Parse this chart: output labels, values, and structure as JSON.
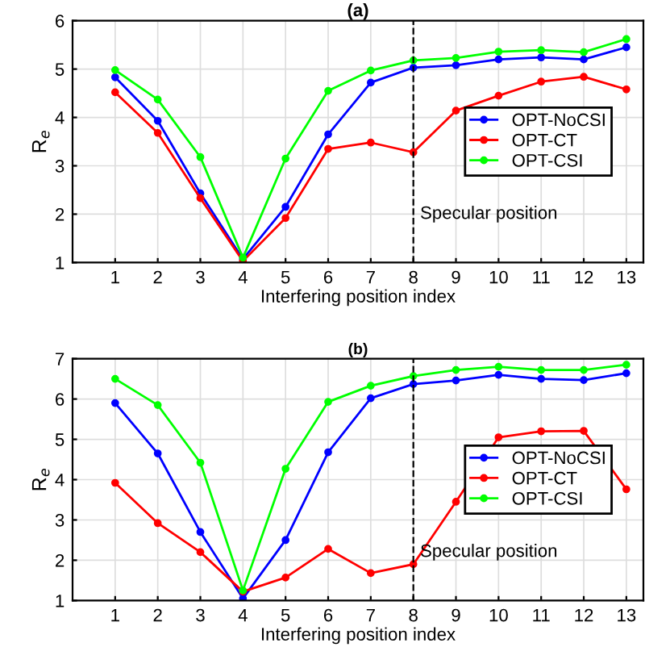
{
  "chart_data": [
    {
      "type": "line",
      "title": "(a)",
      "xlabel": "Interfering position index",
      "ylabel": "R$_{e}$",
      "x": [
        1,
        2,
        3,
        4,
        5,
        6,
        7,
        8,
        9,
        10,
        11,
        12,
        13
      ],
      "series": [
        {
          "name": "OPT-NoCSI",
          "color": "#0000ff",
          "values": [
            4.83,
            3.93,
            2.43,
            1.07,
            2.15,
            3.65,
            4.72,
            5.03,
            5.08,
            5.2,
            5.24,
            5.2,
            5.45
          ]
        },
        {
          "name": "OPT-CT",
          "color": "#ff0000",
          "values": [
            4.52,
            3.68,
            2.33,
            1.03,
            1.92,
            3.35,
            3.48,
            3.28,
            4.14,
            4.45,
            4.74,
            4.84,
            4.58
          ]
        },
        {
          "name": "OPT-CSI",
          "color": "#00ff00",
          "values": [
            4.98,
            4.37,
            3.18,
            1.1,
            3.15,
            4.55,
            4.97,
            5.18,
            5.23,
            5.36,
            5.39,
            5.35,
            5.62
          ]
        }
      ],
      "xlim": [
        0,
        13.4
      ],
      "xticks": [
        1,
        2,
        3,
        4,
        5,
        6,
        7,
        8,
        9,
        10,
        11,
        12,
        13
      ],
      "ylim": [
        1,
        6
      ],
      "yticks": [
        1,
        2,
        3,
        4,
        5,
        6
      ],
      "ref_lines": [
        {
          "axis": "x",
          "value": 8,
          "label": "Specular position",
          "color": "#000000",
          "line_style": "dashed"
        }
      ],
      "grid": true,
      "legend": "right",
      "marker": "circle",
      "line_style": "solid"
    },
    {
      "type": "line",
      "title": "(b)",
      "xlabel": "Interfering position index",
      "ylabel": "R$_{e}$",
      "x": [
        1,
        2,
        3,
        4,
        5,
        6,
        7,
        8,
        9,
        10,
        11,
        12,
        13
      ],
      "series": [
        {
          "name": "OPT-NoCSI",
          "color": "#0000ff",
          "values": [
            5.9,
            4.65,
            2.7,
            1.05,
            2.5,
            4.68,
            6.02,
            6.37,
            6.46,
            6.6,
            6.5,
            6.47,
            6.64
          ]
        },
        {
          "name": "OPT-CT",
          "color": "#ff0000",
          "values": [
            3.92,
            2.92,
            2.2,
            1.22,
            1.57,
            2.28,
            1.68,
            1.9,
            3.45,
            5.05,
            5.2,
            5.21,
            3.76
          ]
        },
        {
          "name": "OPT-CSI",
          "color": "#00ff00",
          "values": [
            6.5,
            5.85,
            4.42,
            1.25,
            4.27,
            5.93,
            6.33,
            6.57,
            6.72,
            6.8,
            6.72,
            6.72,
            6.85
          ]
        }
      ],
      "xlim": [
        0,
        13.4
      ],
      "xticks": [
        1,
        2,
        3,
        4,
        5,
        6,
        7,
        8,
        9,
        10,
        11,
        12,
        13
      ],
      "ylim": [
        1,
        7
      ],
      "yticks": [
        1,
        2,
        3,
        4,
        5,
        6,
        7
      ],
      "ref_lines": [
        {
          "axis": "x",
          "value": 8,
          "label": "Specular position",
          "color": "#000000",
          "line_style": "dashed"
        }
      ],
      "grid": true,
      "legend": "right",
      "marker": "circle",
      "line_style": "solid"
    }
  ]
}
